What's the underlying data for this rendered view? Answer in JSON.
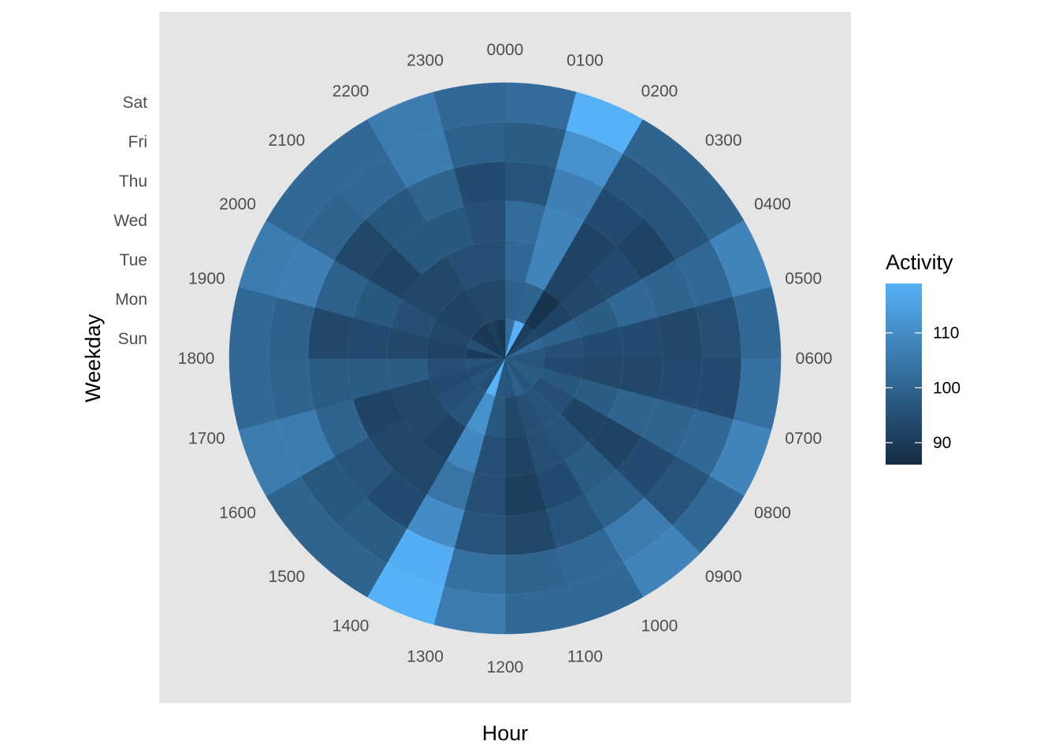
{
  "chart_data": {
    "type": "heatmap",
    "coord": "polar",
    "xlabel": "Hour",
    "ylabel": "Weekday",
    "hours": [
      "0000",
      "0100",
      "0200",
      "0300",
      "0400",
      "0500",
      "0600",
      "0700",
      "0800",
      "0900",
      "1000",
      "1100",
      "1200",
      "1300",
      "1400",
      "1500",
      "1600",
      "1700",
      "1800",
      "1900",
      "2000",
      "2100",
      "2200",
      "2300"
    ],
    "weekdays": [
      "Sun",
      "Mon",
      "Tue",
      "Wed",
      "Thu",
      "Fri",
      "Sat"
    ],
    "values": [
      [
        102,
        99,
        101,
        102,
        96,
        98,
        102
      ],
      [
        119,
        100,
        108,
        108,
        107,
        111,
        119
      ],
      [
        91,
        88,
        92,
        92,
        94,
        96,
        100
      ],
      [
        93,
        92,
        93,
        94,
        92,
        96,
        100
      ],
      [
        101,
        99,
        98,
        101,
        100,
        101,
        108
      ],
      [
        97,
        95,
        94,
        94,
        93,
        95,
        101
      ],
      [
        96,
        94,
        93,
        93,
        94,
        94,
        103
      ],
      [
        98,
        97,
        98,
        100,
        100,
        101,
        108
      ],
      [
        98,
        95,
        92,
        92,
        94,
        96,
        101
      ],
      [
        96,
        96,
        96,
        98,
        99,
        106,
        108
      ],
      [
        99,
        95,
        95,
        94,
        96,
        101,
        101
      ],
      [
        96,
        93,
        92,
        91,
        93,
        100,
        101
      ],
      [
        97,
        97,
        95,
        95,
        96,
        103,
        106
      ],
      [
        119,
        111,
        109,
        104,
        110,
        118,
        119
      ],
      [
        95,
        96,
        92,
        93,
        94,
        98,
        100
      ],
      [
        96,
        95,
        93,
        93,
        96,
        97,
        100
      ],
      [
        94,
        94,
        93,
        92,
        100,
        106,
        106
      ],
      [
        96,
        95,
        98,
        98,
        98,
        100,
        101
      ],
      [
        90,
        92,
        93,
        94,
        93,
        99,
        101
      ],
      [
        95,
        93,
        95,
        97,
        99,
        107,
        106
      ],
      [
        90,
        92,
        93,
        92,
        93,
        100,
        101
      ],
      [
        89,
        92,
        93,
        97,
        97,
        101,
        101
      ],
      [
        91,
        93,
        95,
        97,
        100,
        106,
        106
      ],
      [
        89,
        93,
        95,
        95,
        94,
        99,
        101
      ]
    ],
    "colorbar": {
      "title": "Activity",
      "min": 86,
      "max": 119,
      "ticks": [
        90,
        100,
        110
      ],
      "low_color": "#132B43",
      "high_color": "#56B1F7"
    },
    "legend_position": "right",
    "panel_background": "#e5e5e5"
  }
}
